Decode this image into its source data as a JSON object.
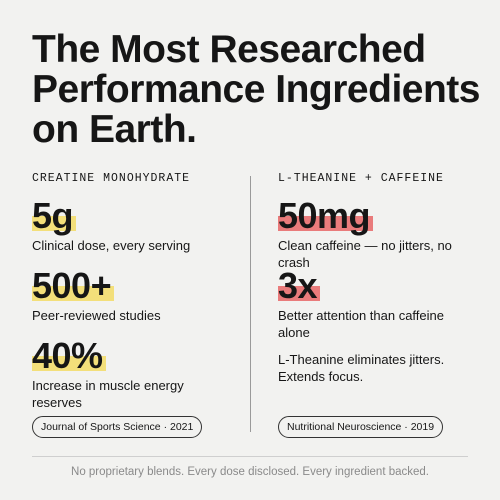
{
  "title": [
    "The Most Researched",
    "Performance Ingredients",
    "on Earth."
  ],
  "columns": [
    {
      "label": "CREATINE MONOHYDRATE",
      "stats": [
        {
          "value": "5g",
          "caption": "Clinical dose, every serving"
        },
        {
          "value": "500+",
          "caption": "Peer-reviewed studies"
        },
        {
          "value": "40%",
          "caption": "Increase in muscle energy reserves"
        }
      ],
      "source": "Journal of Sports Science · 2021"
    },
    {
      "label": "L-THEANINE + CAFFEINE",
      "stats": [
        {
          "value": "50mg",
          "caption": "Clean caffeine — no jitters, no crash"
        },
        {
          "value": "3x",
          "caption": "Better attention than caffeine alone"
        },
        {
          "caption": "L-Theanine eliminates jitters. Extends focus."
        }
      ],
      "source": "Nutritional Neuroscience · 2019"
    }
  ],
  "footer": "No proprietary blends. Every dose disclosed. Every ingredient backed."
}
